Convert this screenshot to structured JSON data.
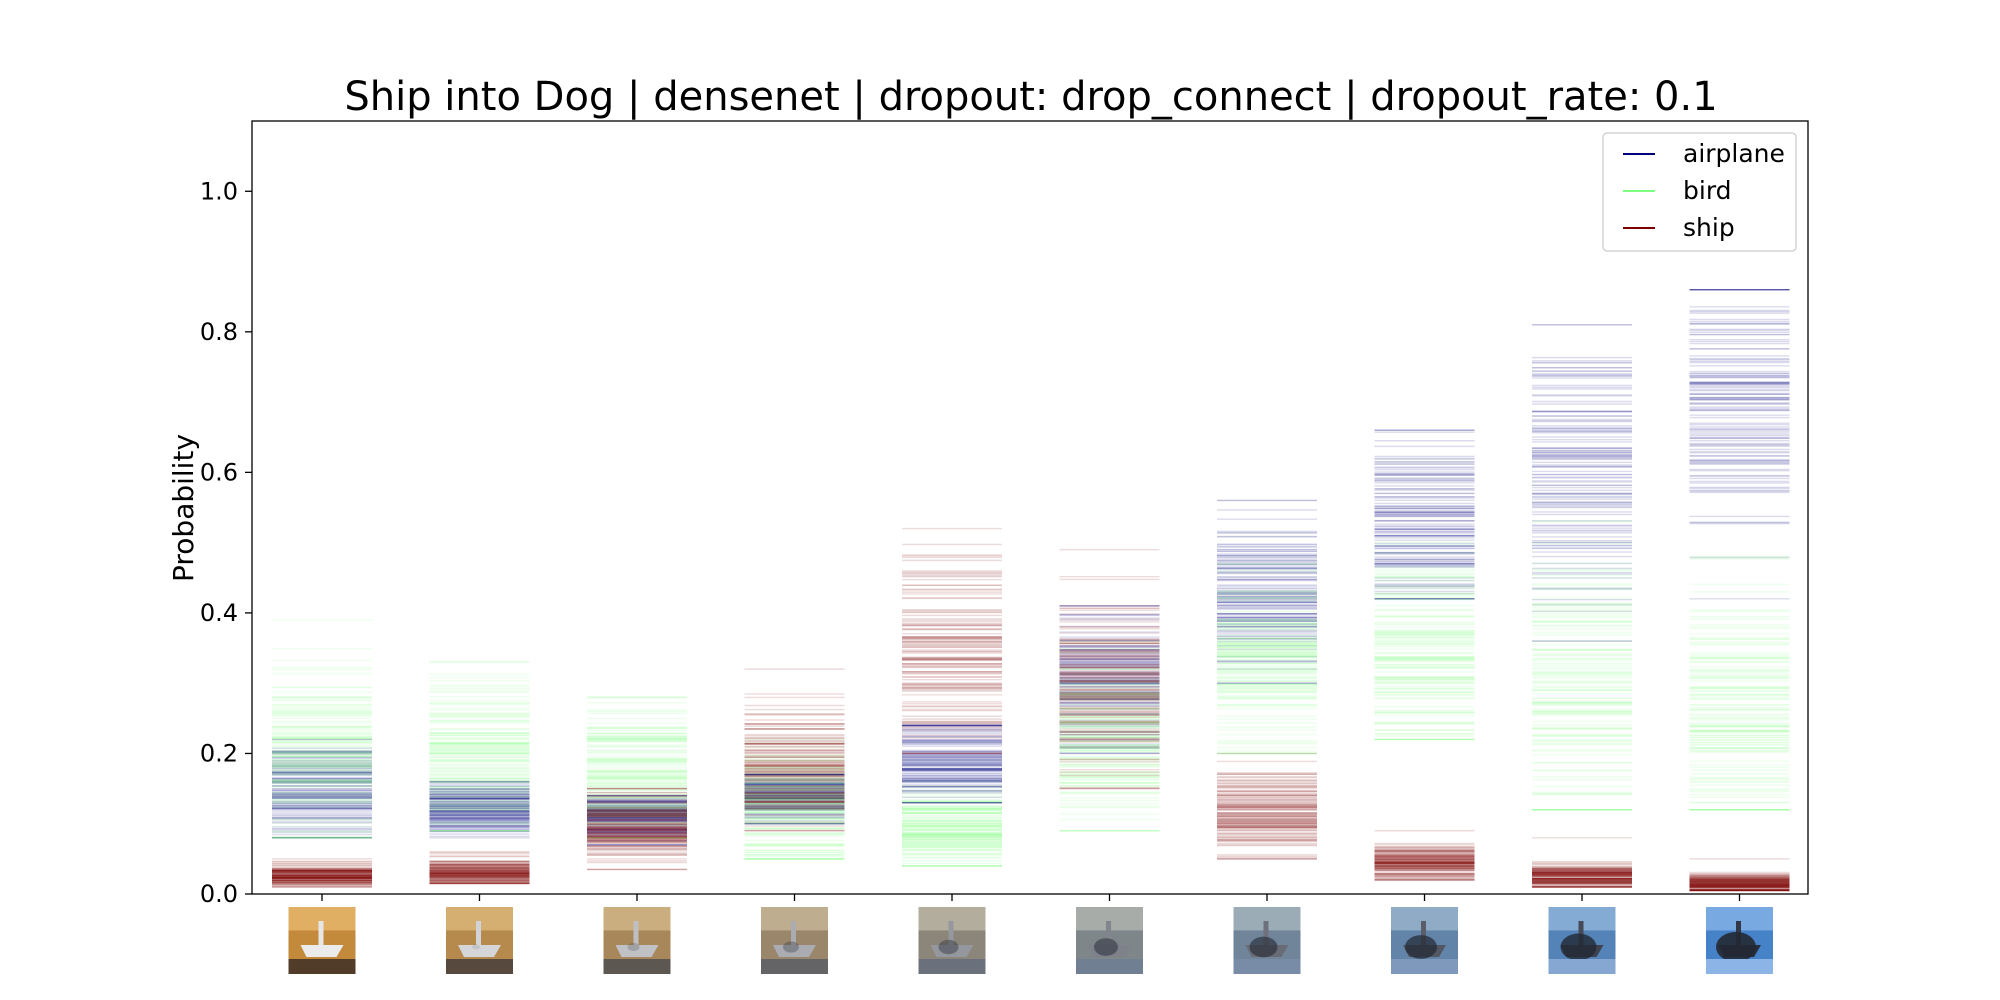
{
  "chart_data": {
    "type": "scatter",
    "title": "Ship into Dog | densenet | dropout: drop_connect | dropout_rate: 0.1",
    "xlabel": "",
    "ylabel": "Probability",
    "ylim": [
      0.0,
      1.1
    ],
    "yticks": [
      "0.0",
      "0.2",
      "0.4",
      "0.6",
      "0.8",
      "1.0"
    ],
    "x_tick_images": "interpolation frames from ship to dog",
    "legend": {
      "placement": "top-right",
      "entries": [
        "airplane",
        "bird",
        "ship"
      ]
    },
    "grid": false,
    "steps": 10,
    "series": [
      {
        "name": "airplane",
        "color": "#00007f",
        "distributions": [
          {
            "mean": 0.15,
            "spread": 0.035,
            "min": 0.08,
            "max": 0.22
          },
          {
            "mean": 0.12,
            "spread": 0.02,
            "min": 0.08,
            "max": 0.16
          },
          {
            "mean": 0.11,
            "spread": 0.02,
            "min": 0.07,
            "max": 0.14
          },
          {
            "mean": 0.14,
            "spread": 0.02,
            "min": 0.1,
            "max": 0.17
          },
          {
            "mean": 0.19,
            "spread": 0.03,
            "min": 0.13,
            "max": 0.24
          },
          {
            "mean": 0.3,
            "spread": 0.05,
            "min": 0.2,
            "max": 0.41
          },
          {
            "mean": 0.42,
            "spread": 0.06,
            "min": 0.3,
            "max": 0.56
          },
          {
            "mean": 0.53,
            "spread": 0.06,
            "min": 0.42,
            "max": 0.66
          },
          {
            "mean": 0.62,
            "spread": 0.09,
            "min": 0.36,
            "max": 0.81
          },
          {
            "mean": 0.68,
            "spread": 0.09,
            "min": 0.42,
            "max": 0.86
          }
        ]
      },
      {
        "name": "bird",
        "color": "#7fff7f",
        "distributions": [
          {
            "mean": 0.2,
            "spread": 0.07,
            "min": 0.08,
            "max": 0.39
          },
          {
            "mean": 0.2,
            "spread": 0.06,
            "min": 0.09,
            "max": 0.33
          },
          {
            "mean": 0.17,
            "spread": 0.05,
            "min": 0.08,
            "max": 0.28
          },
          {
            "mean": 0.12,
            "spread": 0.04,
            "min": 0.05,
            "max": 0.22
          },
          {
            "mean": 0.09,
            "spread": 0.03,
            "min": 0.04,
            "max": 0.16
          },
          {
            "mean": 0.22,
            "spread": 0.06,
            "min": 0.09,
            "max": 0.36
          },
          {
            "mean": 0.33,
            "spread": 0.06,
            "min": 0.2,
            "max": 0.47
          },
          {
            "mean": 0.34,
            "spread": 0.07,
            "min": 0.22,
            "max": 0.5
          },
          {
            "mean": 0.3,
            "spread": 0.09,
            "min": 0.12,
            "max": 0.53
          },
          {
            "mean": 0.26,
            "spread": 0.09,
            "min": 0.12,
            "max": 0.48
          }
        ]
      },
      {
        "name": "ship",
        "color": "#7f0000",
        "distributions": [
          {
            "mean": 0.025,
            "spread": 0.008,
            "min": 0.01,
            "max": 0.05
          },
          {
            "mean": 0.03,
            "spread": 0.01,
            "min": 0.015,
            "max": 0.06
          },
          {
            "mean": 0.09,
            "spread": 0.03,
            "min": 0.035,
            "max": 0.15
          },
          {
            "mean": 0.18,
            "spread": 0.04,
            "min": 0.09,
            "max": 0.32
          },
          {
            "mean": 0.35,
            "spread": 0.07,
            "min": 0.2,
            "max": 0.52
          },
          {
            "mean": 0.28,
            "spread": 0.06,
            "min": 0.15,
            "max": 0.49
          },
          {
            "mean": 0.11,
            "spread": 0.03,
            "min": 0.05,
            "max": 0.2
          },
          {
            "mean": 0.045,
            "spread": 0.012,
            "min": 0.02,
            "max": 0.09
          },
          {
            "mean": 0.025,
            "spread": 0.01,
            "min": 0.01,
            "max": 0.08
          },
          {
            "mean": 0.015,
            "spread": 0.008,
            "min": 0.005,
            "max": 0.05
          }
        ]
      }
    ]
  }
}
